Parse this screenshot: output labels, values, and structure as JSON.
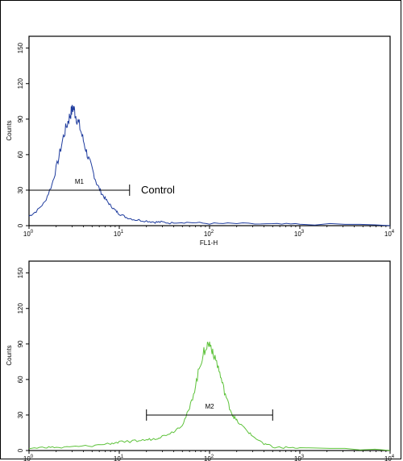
{
  "chart_data": [
    {
      "type": "line",
      "xlabel": "FL1-H",
      "ylabel": "Counts",
      "x_scale": "log",
      "xlim": [
        1,
        10000
      ],
      "ylim": [
        0,
        160
      ],
      "x_ticks": [
        "10",
        "10",
        "10",
        "10",
        "10"
      ],
      "x_tick_exps": [
        "0",
        "1",
        "2",
        "3",
        "4"
      ],
      "y_ticks": [
        "0",
        "30",
        "60",
        "90",
        "120",
        "150"
      ],
      "color": "#1f3c9e",
      "gate": {
        "label": "M1",
        "x_start": 1,
        "x_end": 13,
        "y": 30
      },
      "annotation": "Control",
      "series": [
        {
          "points": [
            [
              1.0,
              8
            ],
            [
              1.2,
              12
            ],
            [
              1.5,
              20
            ],
            [
              1.8,
              35
            ],
            [
              2.1,
              55
            ],
            [
              2.4,
              75
            ],
            [
              2.7,
              88
            ],
            [
              2.9,
              95
            ],
            [
              3.1,
              100
            ],
            [
              3.3,
              93
            ],
            [
              3.6,
              85
            ],
            [
              4.0,
              72
            ],
            [
              4.5,
              58
            ],
            [
              5.0,
              48
            ],
            [
              5.6,
              36
            ],
            [
              6.3,
              28
            ],
            [
              7.1,
              22
            ],
            [
              8.0,
              17
            ],
            [
              9.0,
              13
            ],
            [
              10,
              10
            ],
            [
              12,
              7
            ],
            [
              15,
              5
            ],
            [
              20,
              4
            ],
            [
              25,
              3
            ],
            [
              30,
              3
            ],
            [
              40,
              2
            ],
            [
              60,
              2
            ],
            [
              100,
              1
            ],
            [
              200,
              1
            ],
            [
              500,
              0.5
            ],
            [
              1000,
              0.5
            ],
            [
              10000,
              0
            ]
          ]
        }
      ]
    },
    {
      "type": "line",
      "xlabel": "",
      "ylabel": "Counts",
      "x_scale": "log",
      "xlim": [
        1,
        10000
      ],
      "ylim": [
        0,
        160
      ],
      "x_ticks": [
        "10",
        "10",
        "10",
        "10",
        "10"
      ],
      "x_tick_exps": [
        "0",
        "1",
        "2",
        "3",
        "4"
      ],
      "y_ticks": [
        "0",
        "30",
        "60",
        "90",
        "120",
        "150"
      ],
      "color": "#5dc23a",
      "gate": {
        "label": "M2",
        "x_start": 20,
        "x_end": 500,
        "y": 30
      },
      "series": [
        {
          "points": [
            [
              1.0,
              1
            ],
            [
              1.5,
              2
            ],
            [
              2,
              2
            ],
            [
              3,
              3
            ],
            [
              5,
              4
            ],
            [
              8,
              6
            ],
            [
              10,
              7
            ],
            [
              15,
              8
            ],
            [
              20,
              9
            ],
            [
              25,
              10
            ],
            [
              30,
              12
            ],
            [
              40,
              16
            ],
            [
              50,
              22
            ],
            [
              60,
              35
            ],
            [
              70,
              55
            ],
            [
              80,
              75
            ],
            [
              90,
              88
            ],
            [
              100,
              90
            ],
            [
              110,
              84
            ],
            [
              125,
              70
            ],
            [
              140,
              55
            ],
            [
              160,
              40
            ],
            [
              180,
              30
            ],
            [
              200,
              25
            ],
            [
              250,
              18
            ],
            [
              300,
              12
            ],
            [
              400,
              6
            ],
            [
              500,
              3
            ],
            [
              700,
              2
            ],
            [
              1000,
              1
            ],
            [
              10000,
              0
            ]
          ]
        }
      ]
    }
  ]
}
